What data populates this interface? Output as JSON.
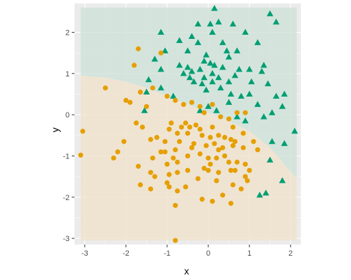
{
  "chart_data": {
    "type": "scatter",
    "title": "",
    "xlabel": "x",
    "ylabel": "y",
    "xlim": [
      -3.25,
      2.25
    ],
    "ylim": [
      -3.15,
      2.7
    ],
    "x_ticks": [
      -3,
      -2,
      -1,
      0,
      1,
      2
    ],
    "y_ticks": [
      -3,
      -2,
      -1,
      0,
      1,
      2
    ],
    "x_tick_labels": [
      "-3",
      "-2",
      "-1",
      "0",
      "1",
      "2"
    ],
    "y_tick_labels": [
      "-3",
      "-2",
      "-1",
      "0",
      "1",
      "2"
    ],
    "grid": true,
    "legend": "none",
    "colors": {
      "panel": "#ebebeb",
      "grid": "#ffffff",
      "region_a": "#cfe3d9",
      "region_b": "#f0e3cc",
      "series_a": "#009e73",
      "series_b": "#e69f00"
    },
    "regions": {
      "extent": {
        "x": [
          -3.1,
          2.15
        ],
        "y": [
          -3.05,
          2.6
        ]
      },
      "boundary": [
        [
          -3.1,
          0.95
        ],
        [
          -2.5,
          0.9
        ],
        [
          -2.0,
          0.8
        ],
        [
          -1.5,
          0.65
        ],
        [
          -1.0,
          0.45
        ],
        [
          -0.5,
          0.25
        ],
        [
          0.0,
          0.05
        ],
        [
          0.5,
          -0.15
        ],
        [
          1.0,
          -0.4
        ],
        [
          1.5,
          -0.8
        ],
        [
          2.15,
          -1.55
        ]
      ]
    },
    "series": [
      {
        "marker": "triangle",
        "color": "#009e73",
        "points": [
          [
            0.15,
            2.58
          ],
          [
            1.5,
            2.45
          ],
          [
            1.65,
            2.25
          ],
          [
            0.25,
            2.25
          ],
          [
            -0.25,
            2.2
          ],
          [
            0.05,
            2.2
          ],
          [
            0.6,
            2.2
          ],
          [
            -1.15,
            2.0
          ],
          [
            0.1,
            2.0
          ],
          [
            0.9,
            2.0
          ],
          [
            -0.4,
            1.9
          ],
          [
            -0.7,
            1.8
          ],
          [
            -0.25,
            1.75
          ],
          [
            0.35,
            1.75
          ],
          [
            1.2,
            1.75
          ],
          [
            -1.05,
            1.55
          ],
          [
            -0.5,
            1.55
          ],
          [
            0.45,
            1.55
          ],
          [
            0.7,
            1.55
          ],
          [
            -0.05,
            1.45
          ],
          [
            0.5,
            1.4
          ],
          [
            -1.3,
            1.35
          ],
          [
            -0.1,
            1.3
          ],
          [
            0.05,
            1.25
          ],
          [
            0.15,
            1.2
          ],
          [
            -0.4,
            1.05
          ],
          [
            1.35,
            1.2
          ],
          [
            -0.7,
            1.2
          ],
          [
            -0.5,
            1.15
          ],
          [
            0.35,
            1.15
          ],
          [
            -1.15,
            1.1
          ],
          [
            -0.2,
            1.1
          ],
          [
            0.75,
            1.1
          ],
          [
            1.0,
            1.1
          ],
          [
            -0.6,
            1.0
          ],
          [
            0.1,
            1.0
          ],
          [
            1.3,
            1.05
          ],
          [
            -0.45,
            0.9
          ],
          [
            -0.1,
            0.9
          ],
          [
            0.25,
            0.9
          ],
          [
            0.65,
            0.95
          ],
          [
            -1.45,
            0.85
          ],
          [
            -0.35,
            0.8
          ],
          [
            -0.15,
            0.75
          ],
          [
            0.1,
            0.8
          ],
          [
            0.5,
            0.8
          ],
          [
            1.05,
            0.8
          ],
          [
            -1.15,
            0.65
          ],
          [
            -0.05,
            0.6
          ],
          [
            1.45,
            0.75
          ],
          [
            -1.5,
            0.55
          ],
          [
            0.3,
            0.65
          ],
          [
            0.55,
            0.5
          ],
          [
            1.0,
            0.5
          ],
          [
            1.85,
            0.5
          ],
          [
            -0.85,
            0.45
          ],
          [
            0.8,
            0.45
          ],
          [
            1.65,
            0.45
          ],
          [
            0.5,
            0.3
          ],
          [
            0.0,
            0.2
          ],
          [
            1.2,
            0.25
          ],
          [
            -1.55,
            0.1
          ],
          [
            -0.2,
            0.1
          ],
          [
            0.2,
            0.1
          ],
          [
            1.55,
            0.05
          ],
          [
            1.8,
            0.2
          ],
          [
            0.7,
            -0.05
          ],
          [
            1.35,
            -0.05
          ],
          [
            0.9,
            -0.15
          ],
          [
            2.1,
            -0.4
          ],
          [
            1.85,
            -0.7
          ],
          [
            1.55,
            -0.65
          ],
          [
            1.5,
            -1.1
          ],
          [
            1.8,
            -1.6
          ],
          [
            1.4,
            -1.9
          ],
          [
            1.25,
            -1.95
          ]
        ]
      },
      {
        "marker": "circle",
        "color": "#e69f00",
        "points": [
          [
            -1.7,
            1.6
          ],
          [
            -1.8,
            1.2
          ],
          [
            -1.15,
            1.5
          ],
          [
            -2.5,
            0.65
          ],
          [
            -1.35,
            0.65
          ],
          [
            -1.65,
            0.55
          ],
          [
            -1.0,
            0.45
          ],
          [
            -2.0,
            0.35
          ],
          [
            -1.9,
            0.3
          ],
          [
            -0.8,
            0.35
          ],
          [
            -0.4,
            0.3
          ],
          [
            -0.6,
            0.25
          ],
          [
            -1.5,
            0.2
          ],
          [
            -0.2,
            0.2
          ],
          [
            0.1,
            0.25
          ],
          [
            0.7,
            0.05
          ],
          [
            0.9,
            0.05
          ],
          [
            -0.1,
            0.05
          ],
          [
            0.3,
            -0.05
          ],
          [
            0.5,
            -0.1
          ],
          [
            -1.75,
            -0.2
          ],
          [
            -0.9,
            -0.2
          ],
          [
            -0.55,
            -0.2
          ],
          [
            -0.45,
            -0.3
          ],
          [
            -0.3,
            -0.25
          ],
          [
            -1.6,
            -0.3
          ],
          [
            -0.95,
            -0.35
          ],
          [
            -0.65,
            -0.3
          ],
          [
            -0.2,
            -0.35
          ],
          [
            0.1,
            -0.3
          ],
          [
            0.6,
            -0.3
          ],
          [
            -3.05,
            -0.4
          ],
          [
            -0.75,
            -0.45
          ],
          [
            -0.5,
            -0.45
          ],
          [
            -0.15,
            -0.5
          ],
          [
            0.05,
            -0.55
          ],
          [
            0.25,
            -0.5
          ],
          [
            0.4,
            -0.55
          ],
          [
            0.85,
            -0.45
          ],
          [
            -1.25,
            -0.55
          ],
          [
            -1.4,
            -0.6
          ],
          [
            -2.05,
            -0.65
          ],
          [
            -1.05,
            -0.65
          ],
          [
            -0.7,
            -0.65
          ],
          [
            -0.35,
            -0.7
          ],
          [
            0.15,
            -0.7
          ],
          [
            0.55,
            -0.6
          ],
          [
            0.65,
            -0.65
          ],
          [
            1.1,
            -0.65
          ],
          [
            -0.4,
            -0.8
          ],
          [
            -0.05,
            -0.75
          ],
          [
            0.35,
            -0.8
          ],
          [
            0.6,
            -0.75
          ],
          [
            0.85,
            -0.8
          ],
          [
            -2.2,
            -0.9
          ],
          [
            -1.15,
            -0.9
          ],
          [
            -1.05,
            -0.9
          ],
          [
            -0.8,
            -0.85
          ],
          [
            -0.2,
            -0.95
          ],
          [
            0.25,
            -0.85
          ],
          [
            0.4,
            -1.0
          ],
          [
            1.2,
            -0.85
          ],
          [
            -3.1,
            -0.98
          ],
          [
            -2.3,
            -1.05
          ],
          [
            -1.35,
            -1.05
          ],
          [
            -0.85,
            -1.05
          ],
          [
            -0.5,
            -1.0
          ],
          [
            0.0,
            -1.05
          ],
          [
            0.2,
            -1.05
          ],
          [
            0.5,
            -1.15
          ],
          [
            -1.0,
            -1.2
          ],
          [
            -0.75,
            -1.15
          ],
          [
            0.05,
            -1.2
          ],
          [
            0.7,
            -1.15
          ],
          [
            0.9,
            -1.2
          ],
          [
            -1.7,
            -1.25
          ],
          [
            -0.1,
            -1.3
          ],
          [
            0.0,
            -1.35
          ],
          [
            0.55,
            -1.35
          ],
          [
            0.65,
            -1.35
          ],
          [
            1.0,
            -1.35
          ],
          [
            -1.4,
            -1.4
          ],
          [
            -0.95,
            -1.45
          ],
          [
            -0.75,
            -1.4
          ],
          [
            -0.5,
            -1.35
          ],
          [
            0.25,
            -1.4
          ],
          [
            -1.3,
            -1.5
          ],
          [
            -0.25,
            -1.55
          ],
          [
            0.9,
            -1.5
          ],
          [
            -1.0,
            -1.65
          ],
          [
            0.2,
            -1.6
          ],
          [
            0.95,
            -1.6
          ],
          [
            -1.65,
            -1.7
          ],
          [
            -1.4,
            -1.8
          ],
          [
            -0.95,
            -1.75
          ],
          [
            -0.55,
            -1.75
          ],
          [
            0.6,
            -1.7
          ],
          [
            0.35,
            -1.95
          ],
          [
            0.8,
            -1.8
          ],
          [
            -0.75,
            -1.85
          ],
          [
            -0.15,
            -2.05
          ],
          [
            0.1,
            -2.1
          ],
          [
            -0.8,
            -2.2
          ],
          [
            0.55,
            -2.15
          ],
          [
            -0.8,
            -3.05
          ]
        ]
      }
    ]
  }
}
